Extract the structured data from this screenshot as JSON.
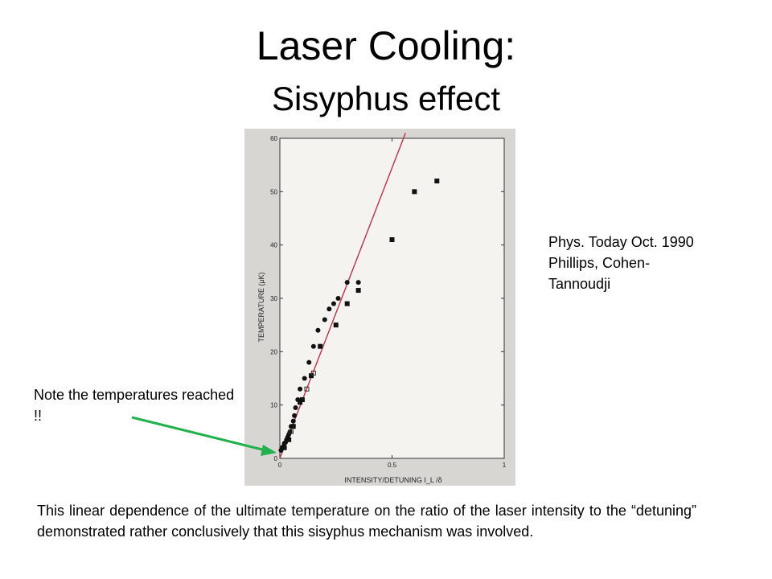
{
  "slide": {
    "title": "Laser Cooling:",
    "subtitle": "Sisyphus effect",
    "reference": "Phys. Today Oct. 1990 Phillips, Cohen-Tannoudji",
    "note": "Note the temperatures reached !!",
    "caption": "This linear dependence of the ultimate temperature on the ratio of the laser intensity to the “detuning” demonstrated rather conclusively that this sisyphus mechanism was involved.",
    "arrow_color": "#22b14c"
  },
  "chart_data": {
    "type": "scatter",
    "xlabel": "INTENSITY/DETUNING  I_L /δ",
    "ylabel": "TEMPERATURE (μK)",
    "xlim": [
      0,
      1
    ],
    "ylim": [
      0,
      60
    ],
    "x_ticks": [
      0,
      0.5,
      1
    ],
    "x_tick_labels": [
      "0",
      "0.5",
      "1"
    ],
    "y_ticks": [
      0,
      10,
      20,
      30,
      40,
      50,
      60
    ],
    "y_tick_labels": [
      "0",
      "10",
      "20",
      "30",
      "40",
      "50",
      "60"
    ],
    "fit_line": {
      "x": [
        0,
        0.56
      ],
      "y": [
        0,
        61
      ],
      "color": "#c0304a"
    },
    "series": [
      {
        "marker": "circle",
        "x": [
          0.005,
          0.01,
          0.015,
          0.02,
          0.025,
          0.03,
          0.035,
          0.04,
          0.045,
          0.05,
          0.06,
          0.065,
          0.07,
          0.08,
          0.09,
          0.11,
          0.13,
          0.15,
          0.17,
          0.2,
          0.22,
          0.24,
          0.26,
          0.3,
          0.35
        ],
        "y": [
          1.5,
          2.0,
          2.2,
          2.8,
          3.0,
          3.5,
          4.0,
          4.5,
          5.0,
          6.0,
          7.0,
          8.0,
          9.5,
          11.0,
          13.0,
          15.0,
          18.0,
          21.0,
          24.0,
          26.0,
          28.0,
          29.0,
          30.0,
          33.0,
          33.0
        ]
      },
      {
        "marker": "square",
        "x": [
          0.02,
          0.04,
          0.06,
          0.09,
          0.1,
          0.14,
          0.18,
          0.25,
          0.3,
          0.35,
          0.5,
          0.6,
          0.7
        ],
        "y": [
          2.0,
          3.5,
          6.0,
          10.5,
          11.0,
          15.5,
          21.0,
          25.0,
          29.0,
          31.5,
          41.0,
          50.0,
          52.0
        ]
      },
      {
        "marker": "open-square",
        "x": [
          0.05,
          0.12,
          0.15
        ],
        "y": [
          5.0,
          13.0,
          16.0
        ]
      }
    ]
  }
}
